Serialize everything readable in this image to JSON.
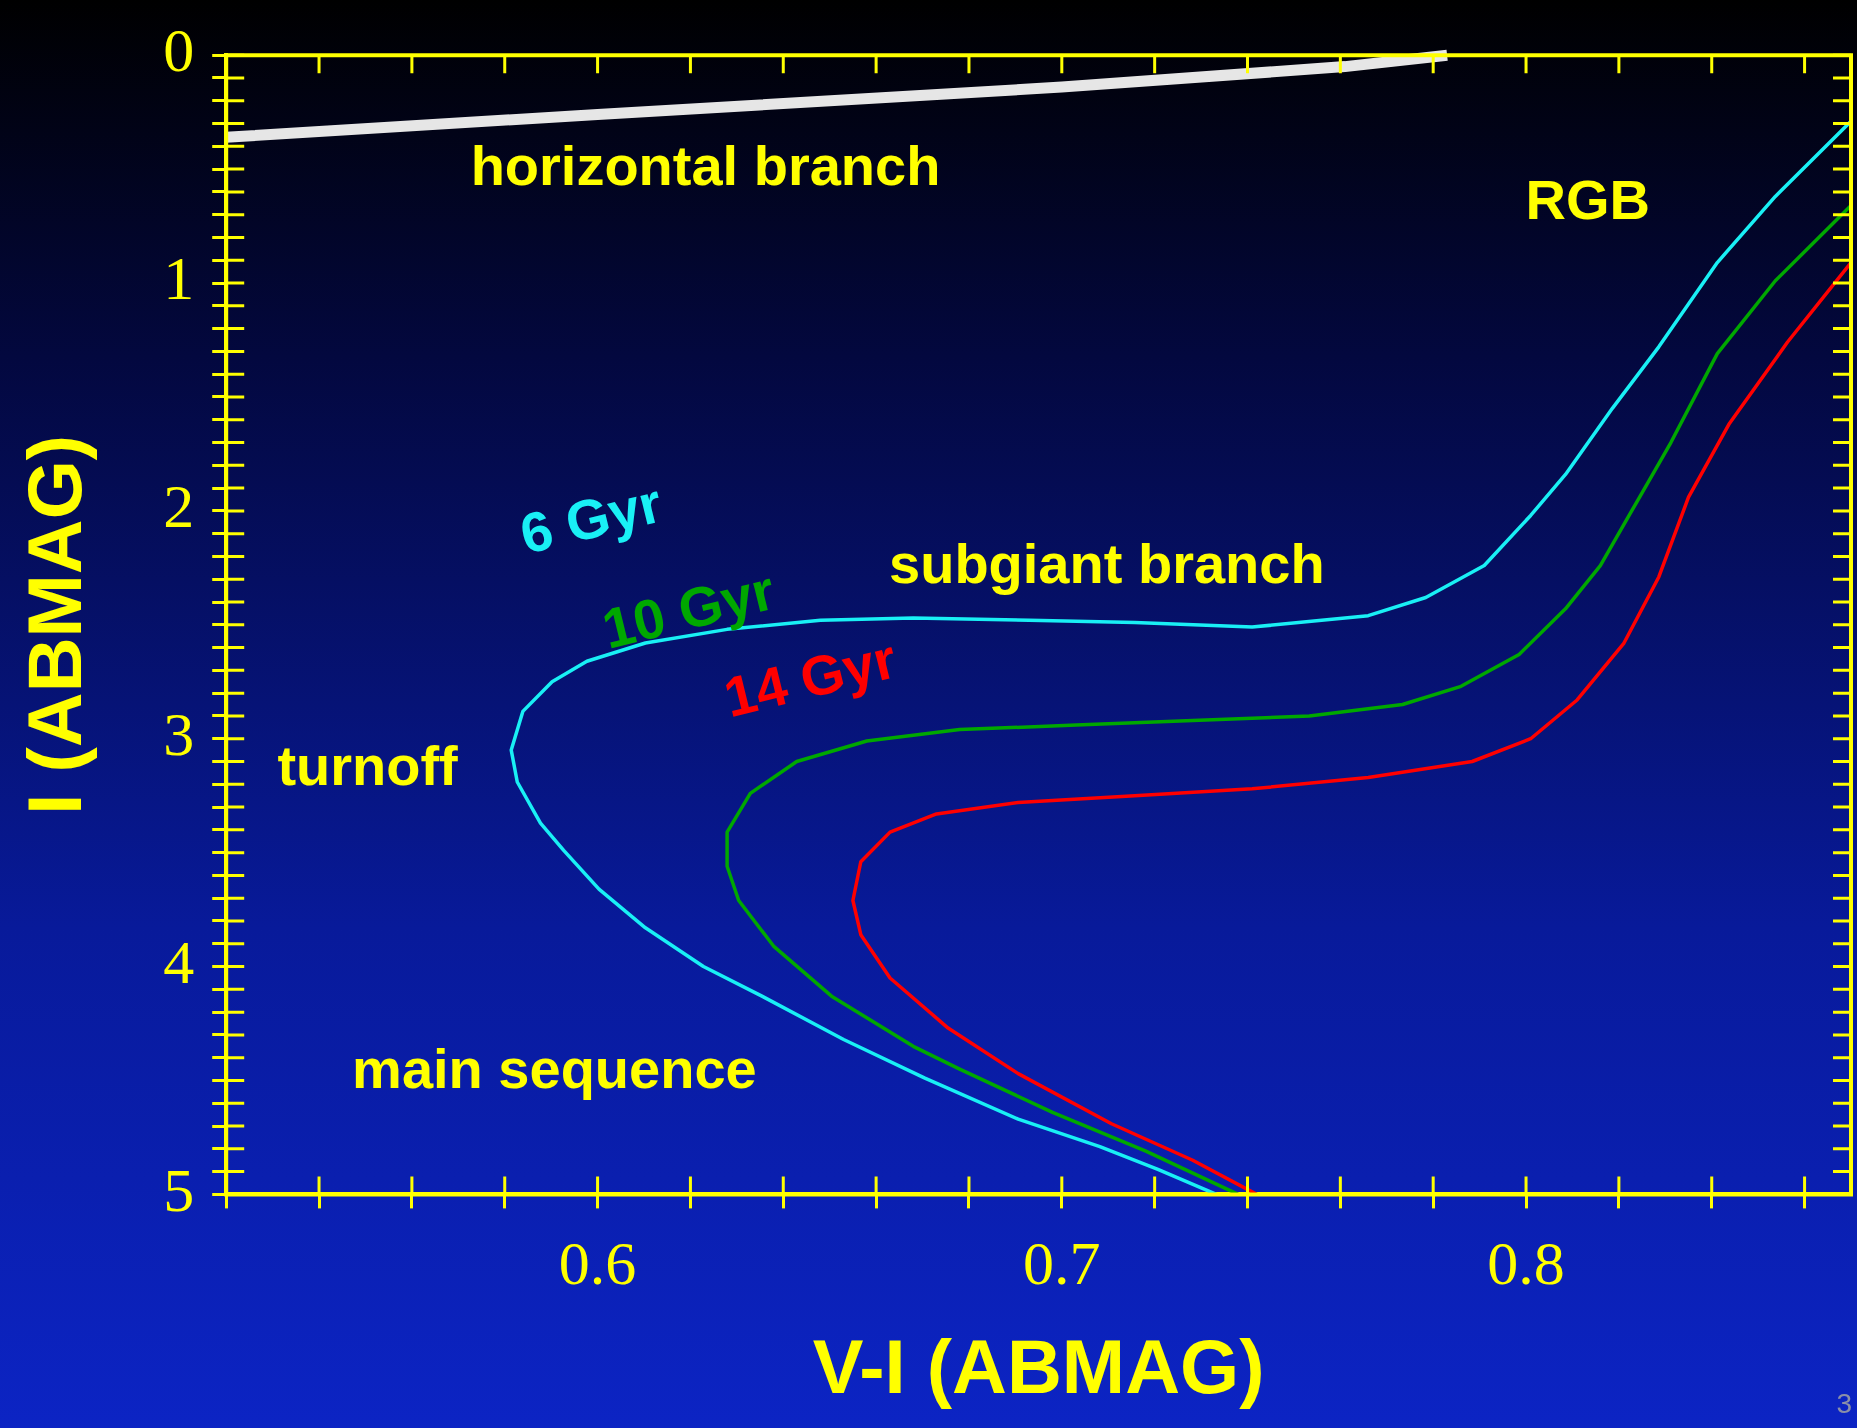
{
  "chart_data": {
    "type": "line",
    "xlabel": "V-I (ABMAG)",
    "ylabel": "I (ABMAG)",
    "xlim": [
      0.52,
      0.87
    ],
    "ylim": [
      5,
      0
    ],
    "xticks": [
      {
        "value": 0.52,
        "label": null
      },
      {
        "value": 0.54,
        "label": null
      },
      {
        "value": 0.56,
        "label": null
      },
      {
        "value": 0.58,
        "label": null
      },
      {
        "value": 0.6,
        "label": "0.6"
      },
      {
        "value": 0.62,
        "label": null
      },
      {
        "value": 0.64,
        "label": null
      },
      {
        "value": 0.66,
        "label": null
      },
      {
        "value": 0.68,
        "label": null
      },
      {
        "value": 0.7,
        "label": "0.7"
      },
      {
        "value": 0.72,
        "label": null
      },
      {
        "value": 0.74,
        "label": null
      },
      {
        "value": 0.76,
        "label": null
      },
      {
        "value": 0.78,
        "label": null
      },
      {
        "value": 0.8,
        "label": "0.8"
      },
      {
        "value": 0.82,
        "label": null
      },
      {
        "value": 0.84,
        "label": null
      },
      {
        "value": 0.86,
        "label": null
      }
    ],
    "yticks": [
      0,
      {
        "value": 0.1,
        "label": null
      },
      {
        "value": 0.2,
        "label": null
      },
      {
        "value": 0.3,
        "label": null
      },
      {
        "value": 0.4,
        "label": null
      },
      {
        "value": 0.5,
        "label": null
      },
      {
        "value": 0.6,
        "label": null
      },
      {
        "value": 0.7,
        "label": null
      },
      {
        "value": 0.8,
        "label": null
      },
      {
        "value": 0.9,
        "label": null
      },
      1,
      {
        "value": 1.1,
        "label": null
      },
      {
        "value": 1.2,
        "label": null
      },
      {
        "value": 1.3,
        "label": null
      },
      {
        "value": 1.4,
        "label": null
      },
      {
        "value": 1.5,
        "label": null
      },
      {
        "value": 1.6,
        "label": null
      },
      {
        "value": 1.7,
        "label": null
      },
      {
        "value": 1.8,
        "label": null
      },
      {
        "value": 1.9,
        "label": null
      },
      2,
      {
        "value": 2.1,
        "label": null
      },
      {
        "value": 2.2,
        "label": null
      },
      {
        "value": 2.3,
        "label": null
      },
      {
        "value": 2.4,
        "label": null
      },
      {
        "value": 2.5,
        "label": null
      },
      {
        "value": 2.6,
        "label": null
      },
      {
        "value": 2.7,
        "label": null
      },
      {
        "value": 2.8,
        "label": null
      },
      {
        "value": 2.9,
        "label": null
      },
      3,
      {
        "value": 3.1,
        "label": null
      },
      {
        "value": 3.2,
        "label": null
      },
      {
        "value": 3.3,
        "label": null
      },
      {
        "value": 3.4,
        "label": null
      },
      {
        "value": 3.5,
        "label": null
      },
      {
        "value": 3.6,
        "label": null
      },
      {
        "value": 3.7,
        "label": null
      },
      {
        "value": 3.8,
        "label": null
      },
      {
        "value": 3.9,
        "label": null
      },
      4,
      {
        "value": 4.1,
        "label": null
      },
      {
        "value": 4.2,
        "label": null
      },
      {
        "value": 4.3,
        "label": null
      },
      {
        "value": 4.4,
        "label": null
      },
      {
        "value": 4.5,
        "label": null
      },
      {
        "value": 4.6,
        "label": null
      },
      {
        "value": 4.7,
        "label": null
      },
      {
        "value": 4.8,
        "label": null
      },
      {
        "value": 4.9,
        "label": null
      },
      5
    ],
    "grid": false,
    "legend": false,
    "marker": "none",
    "line_style": "solid",
    "series": [
      {
        "color": "#e6e6e6",
        "x": [
          0.52,
          0.6,
          0.7,
          0.761,
          0.783
        ],
        "values": [
          0.36,
          0.26,
          0.14,
          0.05,
          0.0
        ]
      },
      {
        "name": "6 Gyr",
        "color": "#19f0f5",
        "x": [
          0.87,
          0.8537,
          0.8412,
          0.8286,
          0.8186,
          0.8085,
          0.801,
          0.791,
          0.7784,
          0.766,
          0.741,
          0.7157,
          0.693,
          0.668,
          0.648,
          0.6279,
          0.6103,
          0.5977,
          0.5902,
          0.5839,
          0.5814,
          0.5827,
          0.5877,
          0.5927,
          0.6003,
          0.6103,
          0.6228,
          0.6354,
          0.653,
          0.6705,
          0.6906,
          0.7082,
          0.7207,
          0.7333
        ],
        "values": [
          0.29,
          0.62,
          0.91,
          1.28,
          1.55,
          1.84,
          2.02,
          2.24,
          2.38,
          2.46,
          2.51,
          2.49,
          2.48,
          2.47,
          2.48,
          2.52,
          2.58,
          2.66,
          2.75,
          2.88,
          3.05,
          3.19,
          3.37,
          3.49,
          3.66,
          3.83,
          4.0,
          4.13,
          4.32,
          4.49,
          4.67,
          4.79,
          4.89,
          5.0
        ]
      },
      {
        "name": "10 Gyr",
        "color": "#00a800",
        "x": [
          0.87,
          0.8537,
          0.8412,
          0.8312,
          0.8236,
          0.816,
          0.8085,
          0.7985,
          0.786,
          0.7734,
          0.7533,
          0.7282,
          0.7031,
          0.678,
          0.658,
          0.6429,
          0.6329,
          0.6279,
          0.6279,
          0.6304,
          0.6379,
          0.6504,
          0.668,
          0.678,
          0.698,
          0.7181,
          0.738
        ],
        "values": [
          0.66,
          0.99,
          1.31,
          1.7,
          1.97,
          2.24,
          2.43,
          2.63,
          2.77,
          2.85,
          2.9,
          2.92,
          2.94,
          2.96,
          3.01,
          3.1,
          3.24,
          3.41,
          3.56,
          3.71,
          3.91,
          4.13,
          4.35,
          4.45,
          4.64,
          4.81,
          5.0
        ]
      },
      {
        "name": "14 Gyr",
        "color": "#ff0000",
        "x": [
          0.87,
          0.8563,
          0.8437,
          0.835,
          0.8286,
          0.8211,
          0.811,
          0.801,
          0.7884,
          0.766,
          0.741,
          0.7157,
          0.6906,
          0.673,
          0.663,
          0.6567,
          0.655,
          0.6567,
          0.663,
          0.6755,
          0.6906,
          0.7107,
          0.7282,
          0.742
        ],
        "values": [
          0.91,
          1.26,
          1.62,
          1.94,
          2.29,
          2.58,
          2.83,
          3.0,
          3.1,
          3.17,
          3.22,
          3.25,
          3.28,
          3.33,
          3.41,
          3.54,
          3.71,
          3.86,
          4.05,
          4.27,
          4.47,
          4.69,
          4.85,
          5.0
        ]
      }
    ],
    "annotations": [
      "horizontal branch",
      "RGB",
      "subgiant branch",
      "turnoff",
      "main sequence",
      "3"
    ]
  }
}
